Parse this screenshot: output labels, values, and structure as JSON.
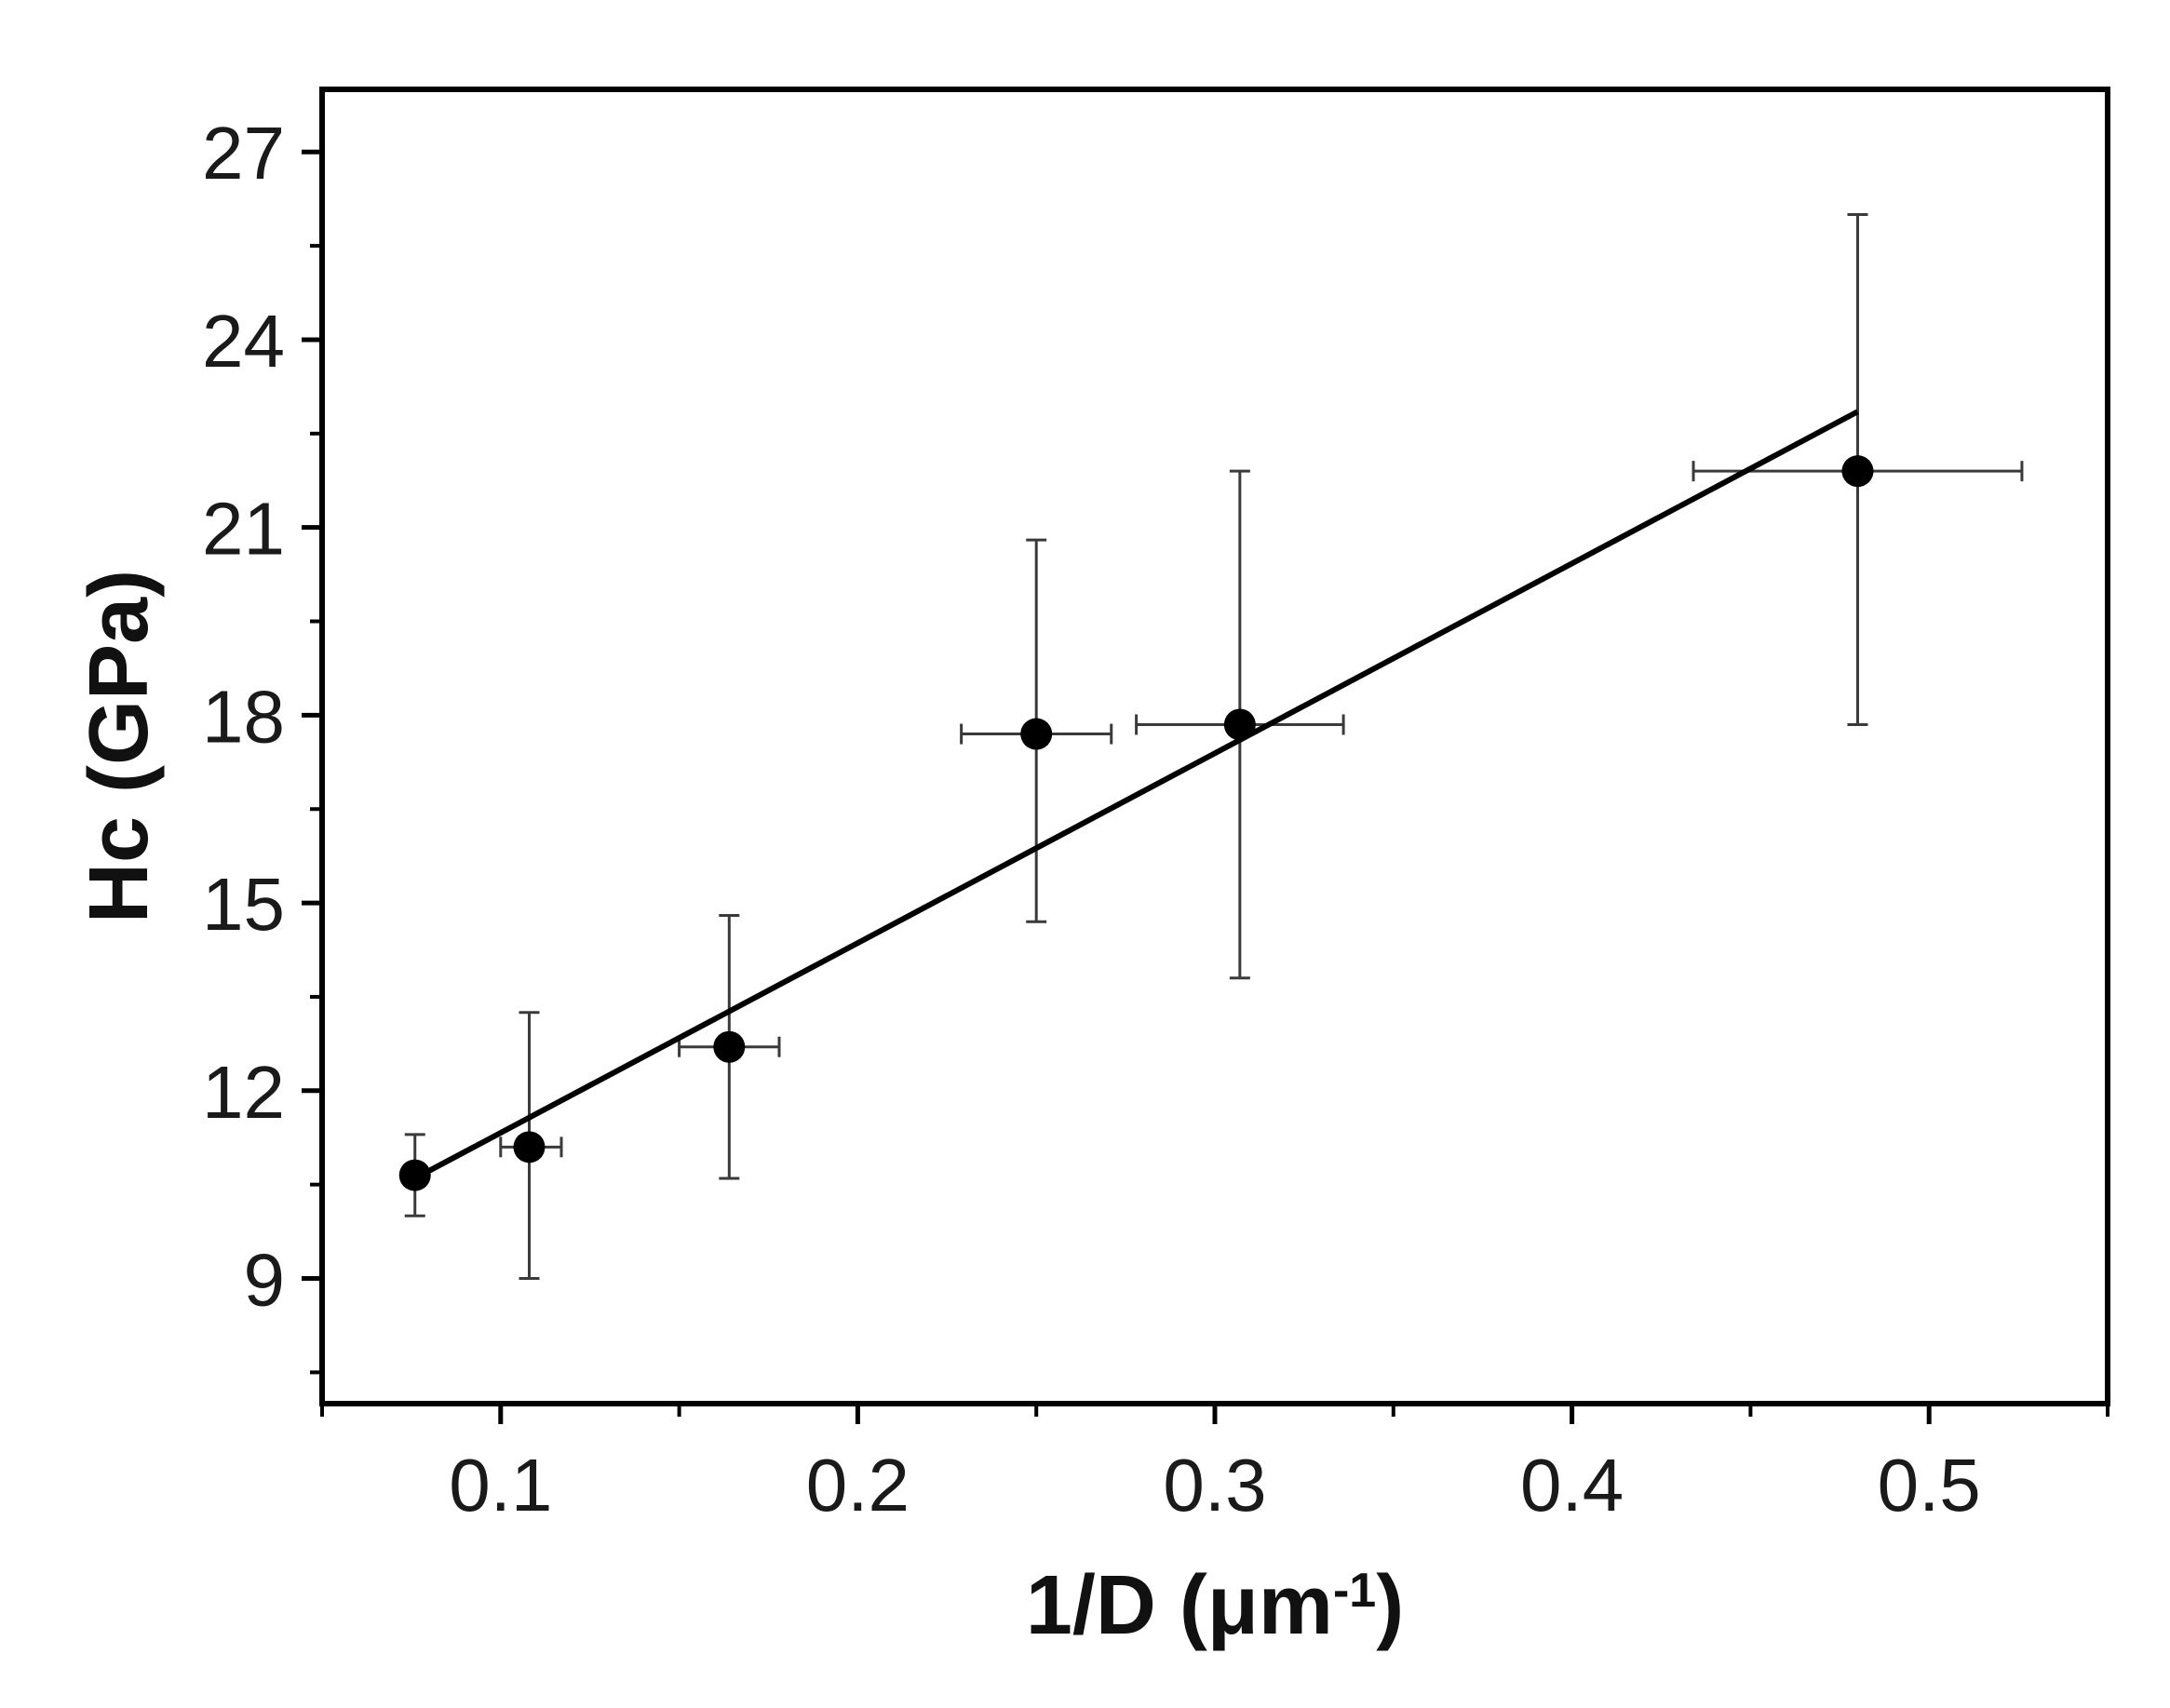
{
  "chart_data": {
    "type": "scatter",
    "title": "",
    "xlabel": "1/D (μm",
    "xlabel_superscript": "-1",
    "xlabel_close": ")",
    "ylabel": "Hc (GPa)",
    "xlim": [
      0.05,
      0.55
    ],
    "ylim": [
      7.0,
      28.0
    ],
    "x_ticks": [
      0.1,
      0.2,
      0.3,
      0.4,
      0.5
    ],
    "x_tick_labels": [
      "0.1",
      "0.2",
      "0.3",
      "0.4",
      "0.5"
    ],
    "x_minor_ticks": [
      0.05,
      0.15,
      0.25,
      0.35,
      0.45,
      0.55
    ],
    "y_ticks": [
      9,
      12,
      15,
      18,
      21,
      24,
      27
    ],
    "y_tick_labels": [
      "9",
      "12",
      "15",
      "18",
      "21",
      "24",
      "27"
    ],
    "y_minor_ticks": [
      7.5,
      10.5,
      13.5,
      16.5,
      19.5,
      22.5,
      25.5
    ],
    "grid": false,
    "legend": "none",
    "points": [
      {
        "x": 0.076,
        "y": 10.65,
        "x_err_minus": 0.0,
        "x_err_plus": 0.0,
        "y_err_minus": 0.65,
        "y_err_plus": 0.65
      },
      {
        "x": 0.108,
        "y": 11.1,
        "x_err_minus": 0.008,
        "x_err_plus": 0.009,
        "y_err_minus": 2.1,
        "y_err_plus": 2.15
      },
      {
        "x": 0.164,
        "y": 12.7,
        "x_err_minus": 0.014,
        "x_err_plus": 0.014,
        "y_err_minus": 2.1,
        "y_err_plus": 2.1
      },
      {
        "x": 0.25,
        "y": 17.7,
        "x_err_minus": 0.021,
        "x_err_plus": 0.021,
        "y_err_minus": 3.0,
        "y_err_plus": 3.1
      },
      {
        "x": 0.307,
        "y": 17.85,
        "x_err_minus": 0.029,
        "x_err_plus": 0.029,
        "y_err_minus": 4.05,
        "y_err_plus": 4.05
      },
      {
        "x": 0.48,
        "y": 21.9,
        "x_err_minus": 0.046,
        "x_err_plus": 0.046,
        "y_err_minus": 4.05,
        "y_err_plus": 4.1
      }
    ],
    "fit_line": {
      "x": [
        0.076,
        0.48
      ],
      "y": [
        10.6,
        22.85
      ]
    },
    "colors": {
      "marker": "#000000",
      "error_bar": "#3a3a3a",
      "fit_line": "#000000",
      "axes": "#000000",
      "text": "#1a1a1a"
    }
  }
}
